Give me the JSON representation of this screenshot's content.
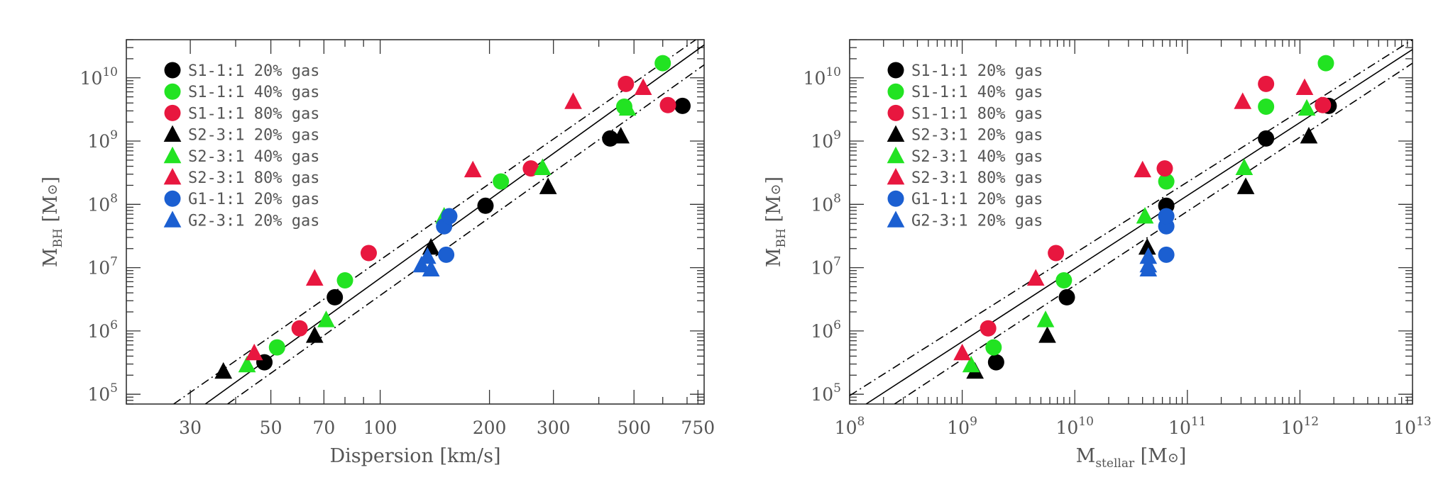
{
  "legend": [
    {
      "label": "S1-1:1 20% gas",
      "color": "#000000",
      "marker": "circle"
    },
    {
      "label": "S1-1:1 40% gas",
      "color": "#22e322",
      "marker": "circle"
    },
    {
      "label": "S1-1:1 80% gas",
      "color": "#e8173f",
      "marker": "circle"
    },
    {
      "label": "S2-3:1 20% gas",
      "color": "#000000",
      "marker": "triangle"
    },
    {
      "label": "S2-3:1 40% gas",
      "color": "#22e322",
      "marker": "triangle"
    },
    {
      "label": "S2-3:1 80% gas",
      "color": "#e8173f",
      "marker": "triangle"
    },
    {
      "label": "G1-1:1 20% gas",
      "color": "#1b5fd1",
      "marker": "circle"
    },
    {
      "label": "G2-3:1 20% gas",
      "color": "#1b5fd1",
      "marker": "triangle"
    }
  ],
  "chart_data": [
    {
      "type": "scatter",
      "xlabel": "Dispersion  [km/s]",
      "ylabel": "M_BH [M_sun]",
      "xscale": "log",
      "yscale": "log",
      "xlim": [
        20,
        780
      ],
      "ylim": [
        70000,
        40000000000
      ],
      "xticks": [
        30,
        50,
        70,
        100,
        200,
        300,
        500,
        750
      ],
      "xtick_labels": [
        "30",
        "50",
        "70",
        "100",
        "200",
        "300",
        "500",
        "750"
      ],
      "yticks": [
        100000,
        1000000,
        10000000,
        100000000,
        1000000000,
        10000000000
      ],
      "ytick_exponents": [
        "5",
        "6",
        "7",
        "8",
        "9",
        "10"
      ],
      "legend_position": "top-left",
      "lines": [
        {
          "style": "solid",
          "points": [
            [
              33,
              70000
            ],
            [
              780,
              33000000000
            ]
          ]
        },
        {
          "style": "dash-dot",
          "points": [
            [
              27,
              70000
            ],
            [
              740,
              40000000000
            ]
          ]
        },
        {
          "style": "dash-dot",
          "points": [
            [
              38,
              70000
            ],
            [
              780,
              16000000000
            ]
          ]
        }
      ],
      "series": [
        {
          "name": "S1-1:1 20% gas",
          "points": [
            [
              48,
              320000
            ],
            [
              75,
              3400000
            ],
            [
              195,
              95000000
            ],
            [
              430,
              1100000000
            ],
            [
              680,
              3600000000
            ]
          ]
        },
        {
          "name": "S1-1:1 40% gas",
          "points": [
            [
              52,
              550000
            ],
            [
              80,
              6300000
            ],
            [
              215,
              230000000
            ],
            [
              470,
              3500000000
            ],
            [
              600,
              17000000000
            ]
          ]
        },
        {
          "name": "S1-1:1 80% gas",
          "points": [
            [
              60,
              1100000
            ],
            [
              93,
              17000000
            ],
            [
              260,
              370000000
            ],
            [
              475,
              8000000000
            ],
            [
              620,
              3700000000
            ]
          ]
        },
        {
          "name": "S2-3:1 20% gas",
          "points": [
            [
              37,
              230000
            ],
            [
              66,
              850000
            ],
            [
              138,
              21000000
            ],
            [
              290,
              190000000
            ],
            [
              460,
              1200000000
            ]
          ]
        },
        {
          "name": "S2-3:1 40% gas",
          "points": [
            [
              43,
              290000
            ],
            [
              71,
              1500000
            ],
            [
              150,
              65000000
            ],
            [
              280,
              380000000
            ],
            [
              480,
              3300000000
            ]
          ]
        },
        {
          "name": "S2-3:1 80% gas",
          "points": [
            [
              45,
              450000
            ],
            [
              66,
              6800000
            ],
            [
              180,
              350000000
            ],
            [
              340,
              4200000000
            ],
            [
              530,
              7000000000
            ]
          ]
        },
        {
          "name": "G1-1:1 20% gas",
          "points": [
            [
              150,
              45000000
            ],
            [
              155,
              65000000
            ],
            [
              152,
              16000000
            ]
          ]
        },
        {
          "name": "G2-3:1 20% gas",
          "points": [
            [
              130,
              11000000
            ],
            [
              135,
              15000000
            ],
            [
              138,
              9500000
            ]
          ]
        }
      ]
    },
    {
      "type": "scatter",
      "xlabel": "M_stellar [M_sun]",
      "ylabel": "M_BH [M_sun]",
      "xscale": "log",
      "yscale": "log",
      "xlim": [
        100000000,
        10000000000000
      ],
      "ylim": [
        70000,
        40000000000
      ],
      "xticks": [
        100000000,
        1000000000,
        10000000000,
        100000000000,
        1000000000000,
        10000000000000
      ],
      "xtick_exponents": [
        "8",
        "9",
        "10",
        "11",
        "12",
        "13"
      ],
      "yticks": [
        100000,
        1000000,
        10000000,
        100000000,
        1000000000,
        10000000000
      ],
      "ytick_exponents": [
        "5",
        "6",
        "7",
        "8",
        "9",
        "10"
      ],
      "legend_position": "top-left",
      "lines": [
        {
          "style": "solid",
          "points": [
            [
              140000000,
              70000
            ],
            [
              10000000000000,
              28000000000
            ]
          ]
        },
        {
          "style": "dash-dot",
          "points": [
            [
              100000000,
              95000
            ],
            [
              10000000000000,
              40000000000
            ]
          ]
        },
        {
          "style": "dash-dot",
          "points": [
            [
              250000000,
              70000
            ],
            [
              10000000000000,
              17000000000
            ]
          ]
        }
      ],
      "series": [
        {
          "name": "S1-1:1 20% gas",
          "points": [
            [
              2000000000,
              320000
            ],
            [
              8500000000,
              3400000
            ],
            [
              65000000000,
              95000000
            ],
            [
              500000000000,
              1100000000
            ],
            [
              1800000000000,
              3600000000
            ]
          ]
        },
        {
          "name": "S1-1:1 40% gas",
          "points": [
            [
              1900000000,
              550000
            ],
            [
              8000000000,
              6300000
            ],
            [
              65000000000,
              230000000
            ],
            [
              500000000000,
              3500000000
            ],
            [
              1700000000000,
              17000000000
            ]
          ]
        },
        {
          "name": "S1-1:1 80% gas",
          "points": [
            [
              1700000000,
              1100000
            ],
            [
              6800000000,
              17000000
            ],
            [
              63000000000,
              370000000
            ],
            [
              500000000000,
              8000000000
            ],
            [
              1600000000000,
              3700000000
            ]
          ]
        },
        {
          "name": "S2-3:1 20% gas",
          "points": [
            [
              1300000000,
              230000
            ],
            [
              5700000000,
              850000
            ],
            [
              44000000000,
              21000000
            ],
            [
              330000000000,
              190000000
            ],
            [
              1200000000000,
              1200000000
            ]
          ]
        },
        {
          "name": "S2-3:1 40% gas",
          "points": [
            [
              1200000000,
              290000
            ],
            [
              5500000000,
              1500000
            ],
            [
              42000000000,
              65000000
            ],
            [
              320000000000,
              380000000
            ],
            [
              1150000000000,
              3300000000
            ]
          ]
        },
        {
          "name": "S2-3:1 80% gas",
          "points": [
            [
              1000000000,
              450000
            ],
            [
              4500000000,
              6800000
            ],
            [
              40000000000,
              350000000
            ],
            [
              310000000000,
              4200000000
            ],
            [
              1100000000000,
              7000000000
            ]
          ]
        },
        {
          "name": "G1-1:1 20% gas",
          "points": [
            [
              65000000000,
              45000000
            ],
            [
              65000000000,
              65000000
            ],
            [
              65000000000,
              16000000
            ]
          ]
        },
        {
          "name": "G2-3:1 20% gas",
          "points": [
            [
              45000000000,
              11000000
            ],
            [
              45000000000,
              15000000
            ],
            [
              45000000000,
              9500000
            ]
          ]
        }
      ]
    }
  ]
}
